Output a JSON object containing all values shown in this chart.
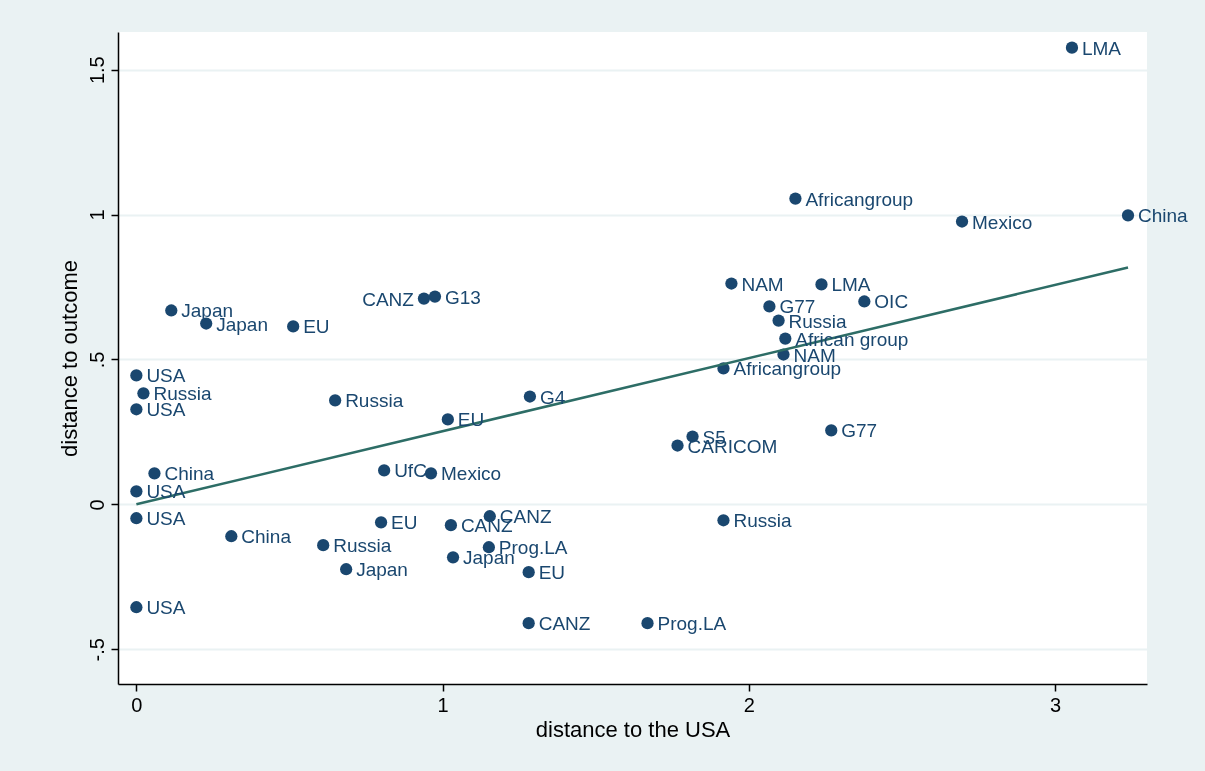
{
  "chart_data": {
    "type": "scatter",
    "xlabel": "distance to the USA",
    "ylabel": "distance to outcome",
    "xlim": [
      -0.06,
      3.3
    ],
    "ylim": [
      -0.62,
      1.63
    ],
    "xticks": [
      0,
      1,
      2,
      3
    ],
    "yticks": [
      {
        "value": -0.5,
        "label": "-.5"
      },
      {
        "value": 0,
        "label": "0"
      },
      {
        "value": 0.5,
        "label": ".5"
      },
      {
        "value": 1,
        "label": "1"
      },
      {
        "value": 1.5,
        "label": "1.5"
      }
    ],
    "grid": "y",
    "series": [
      {
        "marker": "circle",
        "color": "#1a476f",
        "x": [
          3.055,
          2.152,
          2.696,
          3.238,
          1.943,
          2.237,
          2.067,
          2.377,
          2.097,
          2.119,
          2.113,
          1.917,
          2.269,
          1.816,
          1.767,
          1.917,
          1.669,
          1.281,
          1.281,
          1.034,
          1.151,
          1.154,
          1.027,
          0.799,
          1.285,
          1.017,
          0.962,
          0.809,
          0.649,
          0.975,
          0.939,
          0.512,
          0.228,
          0.114,
          0,
          0.023,
          0,
          0.059,
          0,
          0,
          0.31,
          0.61,
          0.685,
          0
        ],
        "values": [
          1.576,
          1.055,
          0.976,
          0.997,
          0.762,
          0.759,
          0.683,
          0.7,
          0.634,
          0.572,
          0.517,
          0.469,
          0.255,
          0.234,
          0.203,
          -0.055,
          -0.41,
          -0.41,
          -0.234,
          -0.183,
          -0.148,
          -0.041,
          -0.072,
          -0.062,
          0.372,
          0.293,
          0.107,
          0.117,
          0.359,
          0.717,
          0.71,
          0.614,
          0.624,
          0.669,
          0.445,
          0.383,
          0.328,
          0.107,
          0.045,
          -0.048,
          -0.11,
          -0.141,
          -0.224,
          -0.355
        ]
      },
      {
        "type": "line",
        "color": "#2d6d66",
        "x": [
          0,
          3.238
        ],
        "values": [
          0,
          0.817
        ]
      }
    ],
    "annotations": [
      {
        "text": "LMA",
        "x": 3.055,
        "y": 1.576
      },
      {
        "text": "Africangroup",
        "x": 2.152,
        "y": 1.055
      },
      {
        "text": "Mexico",
        "x": 2.696,
        "y": 0.976
      },
      {
        "text": "China",
        "x": 3.238,
        "y": 0.997
      },
      {
        "text": "NAM",
        "x": 1.943,
        "y": 0.762
      },
      {
        "text": "LMA",
        "x": 2.237,
        "y": 0.759
      },
      {
        "text": "G77",
        "x": 2.067,
        "y": 0.683
      },
      {
        "text": "OIC",
        "x": 2.377,
        "y": 0.7
      },
      {
        "text": "Russia",
        "x": 2.097,
        "y": 0.634
      },
      {
        "text": "African group",
        "x": 2.119,
        "y": 0.572
      },
      {
        "text": "NAM",
        "x": 2.113,
        "y": 0.517
      },
      {
        "text": "Africangroup",
        "x": 1.917,
        "y": 0.469
      },
      {
        "text": "G77",
        "x": 2.269,
        "y": 0.255
      },
      {
        "text": "S5",
        "x": 1.816,
        "y": 0.234
      },
      {
        "text": "CARICOM",
        "x": 1.767,
        "y": 0.203
      },
      {
        "text": "Russia",
        "x": 1.917,
        "y": -0.055
      },
      {
        "text": "Prog.LA",
        "x": 1.669,
        "y": -0.41
      },
      {
        "text": "CANZ",
        "x": 1.281,
        "y": -0.41
      },
      {
        "text": "EU",
        "x": 1.281,
        "y": -0.234
      },
      {
        "text": "Japan",
        "x": 1.034,
        "y": -0.183
      },
      {
        "text": "Prog.LA",
        "x": 1.151,
        "y": -0.148
      },
      {
        "text": "CANZ",
        "x": 1.154,
        "y": -0.041
      },
      {
        "text": "CANZ",
        "x": 1.027,
        "y": -0.072
      },
      {
        "text": "EU",
        "x": 0.799,
        "y": -0.062
      },
      {
        "text": "G4",
        "x": 1.285,
        "y": 0.372
      },
      {
        "text": "EU",
        "x": 1.017,
        "y": 0.293
      },
      {
        "text": "Mexico",
        "x": 0.962,
        "y": 0.107
      },
      {
        "text": "UfC",
        "x": 0.809,
        "y": 0.117
      },
      {
        "text": "Russia",
        "x": 0.649,
        "y": 0.359
      },
      {
        "text": "G13",
        "x": 0.975,
        "y": 0.717
      },
      {
        "text": "CANZ",
        "x": 0.939,
        "y": 0.71
      },
      {
        "text": "EU",
        "x": 0.512,
        "y": 0.614
      },
      {
        "text": "Japan",
        "x": 0.228,
        "y": 0.624
      },
      {
        "text": "Japan",
        "x": 0.114,
        "y": 0.669
      },
      {
        "text": "USA",
        "x": 0,
        "y": 0.445
      },
      {
        "text": "Russia",
        "x": 0.023,
        "y": 0.383
      },
      {
        "text": "USA",
        "x": 0,
        "y": 0.328
      },
      {
        "text": "China",
        "x": 0.059,
        "y": 0.107
      },
      {
        "text": "USA",
        "x": 0,
        "y": 0.045
      },
      {
        "text": "USA",
        "x": 0,
        "y": -0.048
      },
      {
        "text": "China",
        "x": 0.31,
        "y": -0.11
      },
      {
        "text": "Russia",
        "x": 0.61,
        "y": -0.141
      },
      {
        "text": "Japan",
        "x": 0.685,
        "y": -0.224
      },
      {
        "text": "USA",
        "x": 0,
        "y": -0.355
      }
    ]
  }
}
